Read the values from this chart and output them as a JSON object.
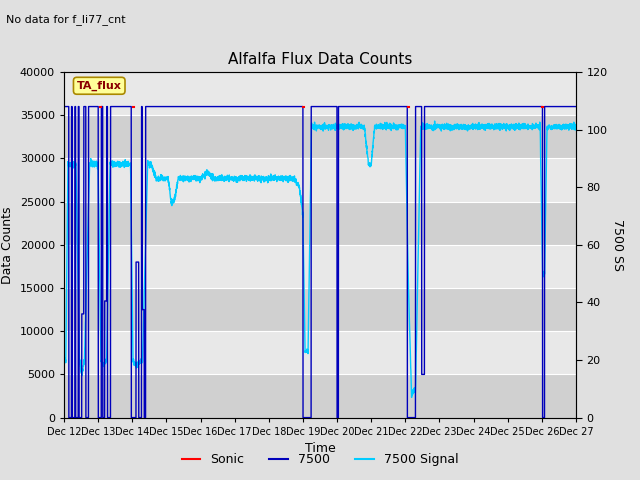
{
  "title": "Alfalfa Flux Data Counts",
  "subtitle": "No data for f_li77_cnt",
  "xlabel": "Time",
  "ylabel_left": "Data Counts",
  "ylabel_right": "7500 SS",
  "ylim_left": [
    0,
    40000
  ],
  "ylim_right": [
    0,
    120
  ],
  "yticks_left": [
    0,
    5000,
    10000,
    15000,
    20000,
    25000,
    30000,
    35000,
    40000
  ],
  "yticks_right": [
    0,
    20,
    40,
    60,
    80,
    100,
    120
  ],
  "xtick_labels": [
    "Dec 12",
    "Dec 13",
    "Dec 14",
    "Dec 15",
    "Dec 16",
    "Dec 17",
    "Dec 18",
    "Dec 19",
    "Dec 20",
    "Dec 21",
    "Dec 22",
    "Dec 23",
    "Dec 24",
    "Dec 25",
    "Dec 26",
    "Dec 27"
  ],
  "fig_bg": "#e0e0e0",
  "plot_bg": "#e8e8e8",
  "legend_label": "TA_flux",
  "legend_label_bg": "#ffff99",
  "legend_label_edge": "#aa8800",
  "sonic_color": "#ff0000",
  "blue_color": "#0000bb",
  "cyan_color": "#00ccff",
  "grid_color": "#ffffff",
  "band_color": "#d0d0d0"
}
